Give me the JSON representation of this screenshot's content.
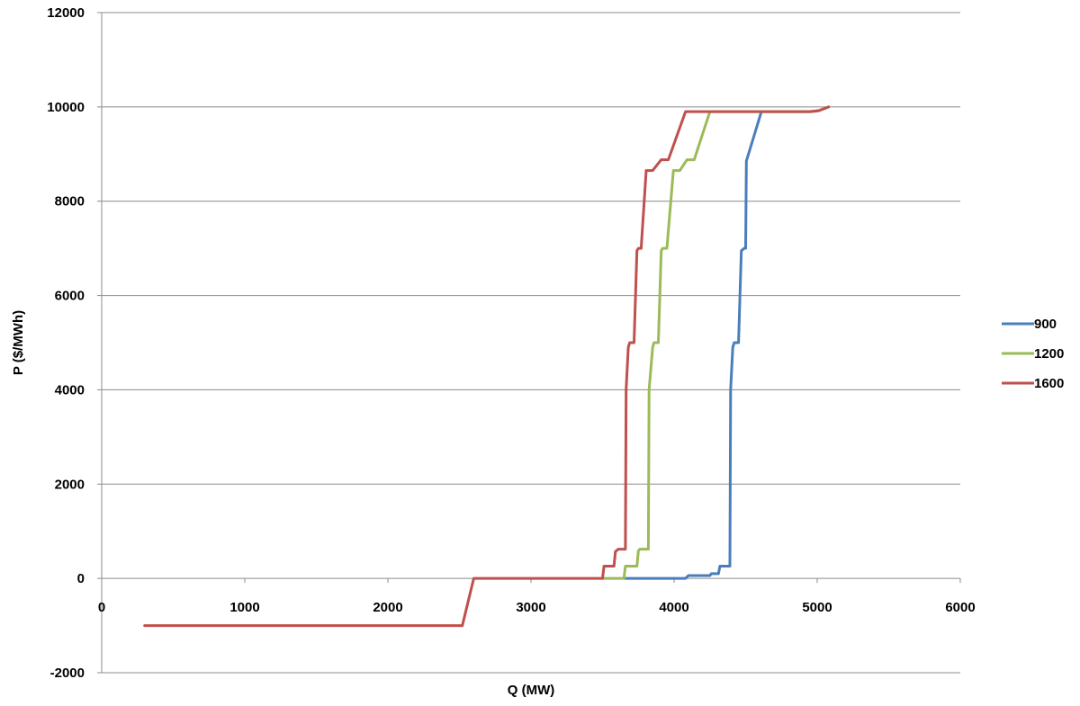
{
  "chart_data": {
    "type": "line",
    "title": "",
    "xlabel": "Q (MW)",
    "ylabel": "P ($/MWh)",
    "xlim": [
      0,
      6000
    ],
    "ylim": [
      -2000,
      12000
    ],
    "x_ticks": [
      "0",
      "1000",
      "2000",
      "3000",
      "4000",
      "5000",
      "6000"
    ],
    "y_ticks": [
      "-2000",
      "0",
      "2000",
      "4000",
      "6000",
      "8000",
      "10000",
      "12000"
    ],
    "grid": "horizontal",
    "legend_position": "right",
    "series": [
      {
        "name": "900",
        "color": "#4a7ebb",
        "points": [
          [
            3650,
            0
          ],
          [
            4080,
            0
          ],
          [
            4100,
            60
          ],
          [
            4250,
            60
          ],
          [
            4260,
            100
          ],
          [
            4310,
            100
          ],
          [
            4320,
            260
          ],
          [
            4390,
            260
          ],
          [
            4395,
            4000
          ],
          [
            4410,
            4900
          ],
          [
            4420,
            5000
          ],
          [
            4450,
            5000
          ],
          [
            4470,
            6950
          ],
          [
            4490,
            7000
          ],
          [
            4500,
            7000
          ],
          [
            4505,
            8850
          ],
          [
            4610,
            9900
          ],
          [
            4950,
            9900
          ],
          [
            5010,
            9920
          ],
          [
            5080,
            10000
          ]
        ]
      },
      {
        "name": "1200",
        "color": "#9bbb59",
        "points": [
          [
            3500,
            0
          ],
          [
            3650,
            0
          ],
          [
            3660,
            260
          ],
          [
            3740,
            260
          ],
          [
            3750,
            580
          ],
          [
            3760,
            620
          ],
          [
            3820,
            620
          ],
          [
            3825,
            4000
          ],
          [
            3850,
            4900
          ],
          [
            3860,
            5000
          ],
          [
            3890,
            5000
          ],
          [
            3910,
            6950
          ],
          [
            3920,
            7000
          ],
          [
            3950,
            7000
          ],
          [
            3995,
            8650
          ],
          [
            4040,
            8650
          ],
          [
            4090,
            8880
          ],
          [
            4140,
            8880
          ],
          [
            4250,
            9900
          ],
          [
            4950,
            9900
          ],
          [
            5010,
            9920
          ],
          [
            5080,
            10000
          ]
        ]
      },
      {
        "name": "1600",
        "color": "#c0504d",
        "points": [
          [
            300,
            -1000
          ],
          [
            2520,
            -1000
          ],
          [
            2600,
            0
          ],
          [
            3500,
            0
          ],
          [
            3510,
            260
          ],
          [
            3580,
            260
          ],
          [
            3590,
            570
          ],
          [
            3610,
            620
          ],
          [
            3660,
            620
          ],
          [
            3665,
            4000
          ],
          [
            3680,
            4900
          ],
          [
            3690,
            5000
          ],
          [
            3720,
            5000
          ],
          [
            3740,
            6950
          ],
          [
            3750,
            7000
          ],
          [
            3770,
            7000
          ],
          [
            3805,
            8650
          ],
          [
            3850,
            8650
          ],
          [
            3910,
            8880
          ],
          [
            3960,
            8880
          ],
          [
            4080,
            9900
          ],
          [
            4950,
            9900
          ],
          [
            5010,
            9920
          ],
          [
            5080,
            10000
          ]
        ]
      }
    ]
  }
}
